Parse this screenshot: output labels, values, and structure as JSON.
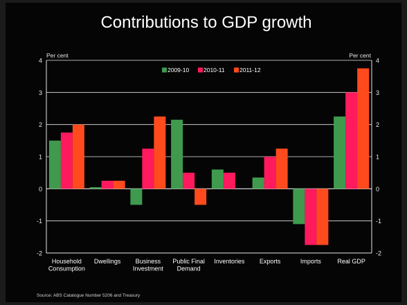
{
  "chart_data": {
    "type": "bar",
    "title": "Contributions to GDP growth",
    "ylabel_left": "Per cent",
    "ylabel_right": "Per cent",
    "ylim": [
      -2,
      4
    ],
    "yticks": [
      4,
      3,
      2,
      1,
      0,
      -1,
      -2
    ],
    "grid": true,
    "legend_position": "top-center",
    "categories": [
      [
        "Household",
        "Consumption"
      ],
      [
        "Dwellings"
      ],
      [
        "Business",
        "Investment"
      ],
      [
        "Public Final",
        "Demand"
      ],
      [
        "Inventories"
      ],
      [
        "Exports"
      ],
      [
        "Imports"
      ],
      [
        "Real GDP"
      ]
    ],
    "series": [
      {
        "name": "2009-10",
        "color": "#3f9a4e",
        "values": [
          1.5,
          0.05,
          -0.5,
          2.15,
          0.6,
          0.35,
          -1.1,
          2.25
        ]
      },
      {
        "name": "2010-11",
        "color": "#ff1a5e",
        "values": [
          1.75,
          0.25,
          1.25,
          0.5,
          0.5,
          1.0,
          -1.75,
          3.0
        ]
      },
      {
        "name": "2011-12",
        "color": "#ff4a1e",
        "values": [
          2.0,
          0.25,
          2.25,
          -0.5,
          0.0,
          1.25,
          -1.75,
          3.75
        ]
      }
    ],
    "source": "Source:  ABS Catalogue Number 5206 and Treasury"
  }
}
